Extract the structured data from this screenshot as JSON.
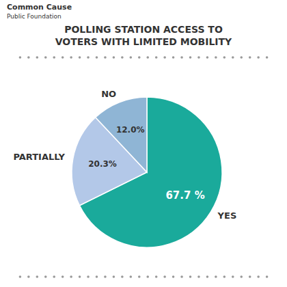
{
  "chart_data": {
    "type": "pie",
    "title": "POLLING STATION ACCESS TO",
    "subtitle": "VOTERS WITH LIMITED MOBILITY",
    "categories": [
      "YES",
      "PARTIALLY",
      "NO"
    ],
    "values": [
      67.7,
      20.3,
      12.0
    ],
    "value_labels": [
      "67.7 %",
      "20.3%",
      "12.0%"
    ],
    "data_labels": true,
    "colors": [
      "#1aaa9b",
      "#b3c8e8",
      "#8fb5d5"
    ],
    "annotations": [
      "Common Cause",
      "Public Foundation"
    ]
  }
}
